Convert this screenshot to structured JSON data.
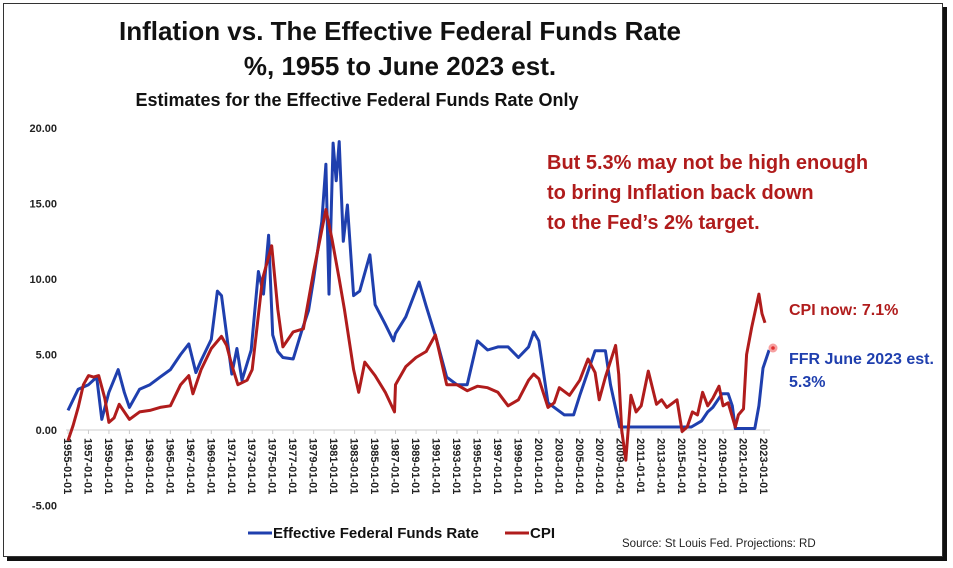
{
  "chart_data": {
    "type": "line",
    "title": "Inflation vs. The Effective Federal Funds Rate",
    "title_line2": "%, 1955 to June 2023 est.",
    "subtitle": "Estimates for the Effective Federal Funds Rate Only",
    "xlabel": "",
    "ylabel": "",
    "ylim": [
      -5,
      20
    ],
    "xlim": [
      1955,
      2023.5
    ],
    "y_ticks": [
      "20.00",
      "15.00",
      "10.00",
      "5.00",
      "0.00",
      "-5.00"
    ],
    "y_tick_values": [
      20,
      15,
      10,
      5,
      0,
      -5
    ],
    "x_tick_years": [
      1955,
      1957,
      1959,
      1961,
      1963,
      1965,
      1967,
      1969,
      1971,
      1973,
      1975,
      1977,
      1979,
      1981,
      1983,
      1985,
      1987,
      1989,
      1991,
      1993,
      1995,
      1997,
      1999,
      2001,
      2003,
      2005,
      2007,
      2009,
      2011,
      2013,
      2015,
      2017,
      2019,
      2021,
      2023
    ],
    "x_tick_suffix": "-01-01",
    "grid": false,
    "legend_position": "bottom",
    "series": [
      {
        "name": "Effective Federal Funds Rate",
        "color": "#1f3fae",
        "points": [
          [
            1955,
            1.3
          ],
          [
            1956,
            2.7
          ],
          [
            1957,
            3.0
          ],
          [
            1957.8,
            3.5
          ],
          [
            1958.3,
            0.7
          ],
          [
            1959,
            2.5
          ],
          [
            1959.9,
            4.0
          ],
          [
            1960.5,
            2.5
          ],
          [
            1961,
            1.5
          ],
          [
            1962,
            2.7
          ],
          [
            1963,
            3.0
          ],
          [
            1964,
            3.5
          ],
          [
            1965,
            4.0
          ],
          [
            1966,
            5.0
          ],
          [
            1966.8,
            5.7
          ],
          [
            1967.5,
            3.8
          ],
          [
            1968,
            4.6
          ],
          [
            1969,
            6.0
          ],
          [
            1969.6,
            9.2
          ],
          [
            1970,
            8.9
          ],
          [
            1971,
            3.7
          ],
          [
            1971.5,
            5.4
          ],
          [
            1972,
            3.3
          ],
          [
            1972.9,
            5.3
          ],
          [
            1973.6,
            10.5
          ],
          [
            1974.1,
            9.0
          ],
          [
            1974.6,
            12.9
          ],
          [
            1975,
            6.3
          ],
          [
            1975.5,
            5.2
          ],
          [
            1976,
            4.8
          ],
          [
            1977,
            4.7
          ],
          [
            1977.8,
            6.5
          ],
          [
            1978.5,
            7.9
          ],
          [
            1979,
            10.0
          ],
          [
            1979.8,
            13.8
          ],
          [
            1980.2,
            17.6
          ],
          [
            1980.5,
            9.0
          ],
          [
            1980.9,
            19.0
          ],
          [
            1981.2,
            16.5
          ],
          [
            1981.5,
            19.1
          ],
          [
            1981.9,
            12.5
          ],
          [
            1982.3,
            14.9
          ],
          [
            1982.9,
            8.9
          ],
          [
            1983.5,
            9.2
          ],
          [
            1984.5,
            11.6
          ],
          [
            1985,
            8.3
          ],
          [
            1986,
            7.0
          ],
          [
            1986.8,
            5.9
          ],
          [
            1987,
            6.4
          ],
          [
            1988,
            7.5
          ],
          [
            1989.3,
            9.8
          ],
          [
            1990,
            8.2
          ],
          [
            1991,
            6.0
          ],
          [
            1992,
            3.5
          ],
          [
            1993,
            3.0
          ],
          [
            1994,
            3.0
          ],
          [
            1995,
            5.9
          ],
          [
            1996,
            5.3
          ],
          [
            1997,
            5.5
          ],
          [
            1998,
            5.5
          ],
          [
            1999,
            4.8
          ],
          [
            2000,
            5.5
          ],
          [
            2000.5,
            6.5
          ],
          [
            2001,
            5.9
          ],
          [
            2001.9,
            1.8
          ],
          [
            2002.9,
            1.3
          ],
          [
            2003.5,
            1.0
          ],
          [
            2004.4,
            1.0
          ],
          [
            2005,
            2.3
          ],
          [
            2006.5,
            5.25
          ],
          [
            2007.5,
            5.25
          ],
          [
            2008,
            3.0
          ],
          [
            2008.9,
            0.2
          ],
          [
            2015.9,
            0.2
          ],
          [
            2016.9,
            0.6
          ],
          [
            2017.5,
            1.2
          ],
          [
            2018,
            1.5
          ],
          [
            2018.9,
            2.4
          ],
          [
            2019.5,
            2.4
          ],
          [
            2019.9,
            1.6
          ],
          [
            2020.2,
            0.1
          ],
          [
            2022.1,
            0.1
          ],
          [
            2022.5,
            1.6
          ],
          [
            2022.9,
            4.1
          ],
          [
            2023.5,
            5.3
          ]
        ]
      },
      {
        "name": "CPI",
        "color": "#b01c1c",
        "points": [
          [
            1955,
            -0.7
          ],
          [
            1955.5,
            0.3
          ],
          [
            1956,
            1.5
          ],
          [
            1956.5,
            3.0
          ],
          [
            1957,
            3.6
          ],
          [
            1957.5,
            3.5
          ],
          [
            1958,
            3.6
          ],
          [
            1958.6,
            2.1
          ],
          [
            1959,
            0.5
          ],
          [
            1959.5,
            0.8
          ],
          [
            1960,
            1.7
          ],
          [
            1961,
            0.7
          ],
          [
            1962,
            1.2
          ],
          [
            1963,
            1.3
          ],
          [
            1964,
            1.5
          ],
          [
            1965,
            1.6
          ],
          [
            1966,
            3.0
          ],
          [
            1966.8,
            3.6
          ],
          [
            1967.2,
            2.4
          ],
          [
            1968,
            4.0
          ],
          [
            1969,
            5.4
          ],
          [
            1970,
            6.2
          ],
          [
            1970.5,
            5.6
          ],
          [
            1971,
            4.3
          ],
          [
            1971.6,
            3.0
          ],
          [
            1972.5,
            3.3
          ],
          [
            1973,
            4.0
          ],
          [
            1974,
            10.0
          ],
          [
            1974.9,
            12.2
          ],
          [
            1975.5,
            8.0
          ],
          [
            1976,
            5.5
          ],
          [
            1977,
            6.5
          ],
          [
            1978,
            6.7
          ],
          [
            1979,
            10.5
          ],
          [
            1980.2,
            14.6
          ],
          [
            1980.8,
            12.6
          ],
          [
            1981.5,
            10.0
          ],
          [
            1982,
            8.0
          ],
          [
            1982.9,
            4.0
          ],
          [
            1983.4,
            2.5
          ],
          [
            1984,
            4.5
          ],
          [
            1985,
            3.6
          ],
          [
            1986,
            2.5
          ],
          [
            1986.9,
            1.2
          ],
          [
            1987,
            3.0
          ],
          [
            1988,
            4.2
          ],
          [
            1989,
            4.8
          ],
          [
            1990,
            5.2
          ],
          [
            1990.9,
            6.3
          ],
          [
            1991.5,
            4.5
          ],
          [
            1992,
            3.0
          ],
          [
            1993,
            3.0
          ],
          [
            1994,
            2.6
          ],
          [
            1995,
            2.9
          ],
          [
            1996,
            2.8
          ],
          [
            1997,
            2.5
          ],
          [
            1998,
            1.6
          ],
          [
            1999,
            2.0
          ],
          [
            2000,
            3.3
          ],
          [
            2000.5,
            3.7
          ],
          [
            2001,
            3.4
          ],
          [
            2001.9,
            1.5
          ],
          [
            2002.5,
            1.8
          ],
          [
            2003,
            2.8
          ],
          [
            2004,
            2.3
          ],
          [
            2005,
            3.3
          ],
          [
            2005.8,
            4.7
          ],
          [
            2006.5,
            3.8
          ],
          [
            2006.9,
            2.0
          ],
          [
            2007.5,
            3.5
          ],
          [
            2008.5,
            5.6
          ],
          [
            2008.8,
            3.7
          ],
          [
            2009.1,
            0.0
          ],
          [
            2009.5,
            -2.0
          ],
          [
            2010,
            2.3
          ],
          [
            2010.5,
            1.2
          ],
          [
            2011,
            1.6
          ],
          [
            2011.7,
            3.9
          ],
          [
            2012.5,
            1.7
          ],
          [
            2013,
            2.0
          ],
          [
            2013.5,
            1.5
          ],
          [
            2014.5,
            2.0
          ],
          [
            2015,
            -0.1
          ],
          [
            2015.5,
            0.2
          ],
          [
            2016,
            1.2
          ],
          [
            2016.5,
            1.0
          ],
          [
            2017,
            2.5
          ],
          [
            2017.5,
            1.6
          ],
          [
            2018,
            2.1
          ],
          [
            2018.6,
            2.9
          ],
          [
            2019,
            1.6
          ],
          [
            2019.5,
            1.8
          ],
          [
            2020.2,
            0.2
          ],
          [
            2020.5,
            1.0
          ],
          [
            2021,
            1.4
          ],
          [
            2021.3,
            5.0
          ],
          [
            2021.8,
            6.8
          ],
          [
            2022.5,
            9.0
          ],
          [
            2022.8,
            7.7
          ],
          [
            2023.1,
            7.1
          ]
        ]
      }
    ],
    "annotations": {
      "headline": [
        "But 5.3% may not be high enough",
        "to bring Inflation back down",
        "to the Fed’s 2% target."
      ],
      "cpi_now": "CPI now: 7.1%",
      "ffr_est_line1": "FFR June 2023 est.",
      "ffr_est_line2": "5.3%"
    },
    "source": "Source: St Louis Fed. Projections: RD"
  }
}
